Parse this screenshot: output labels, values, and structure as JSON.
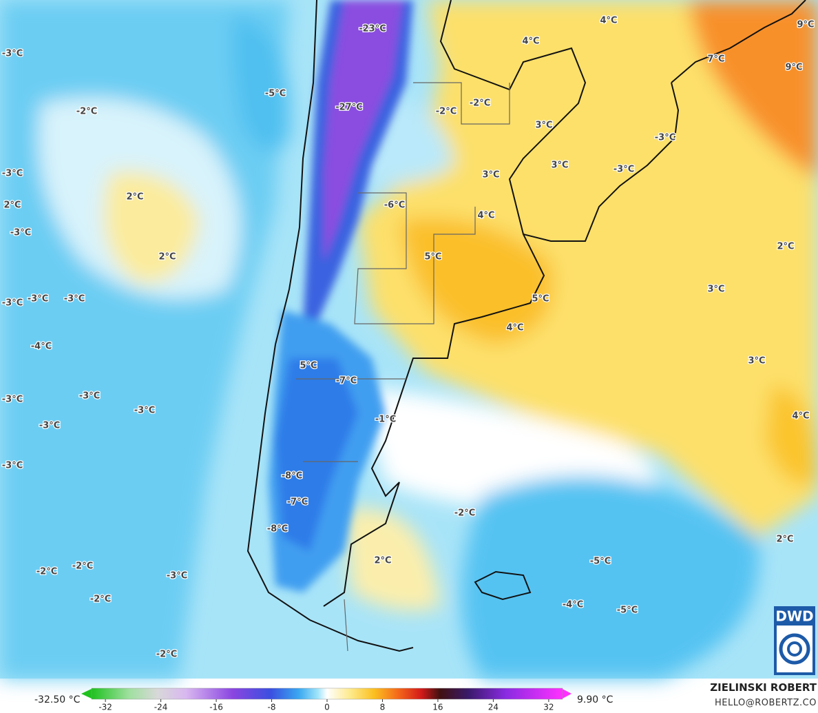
{
  "labels": [
    "-23°C",
    "4°C",
    "4°C",
    "9°C",
    "7°C",
    "9°C",
    "-3°C",
    "-5°C",
    "-2°C",
    "-27°C",
    "-2°C",
    "-2°C",
    "3°C",
    "-3°C",
    "3°C",
    "-3°C",
    "-3°C",
    "3°C",
    "2°C",
    "2°C",
    "-6°C",
    "4°C",
    "-3°C",
    "2°C",
    "5°C",
    "2°C",
    "3°C",
    "-3°C",
    "-3°C",
    "-3°C",
    "5°C",
    "4°C",
    "-4°C",
    "3°C",
    "5°C",
    "-7°C",
    "-3°C",
    "-3°C",
    "-3°C",
    "-3°C",
    "-1°C",
    "4°C",
    "-3°C",
    "-8°C",
    "-7°C",
    "-2°C",
    "-8°C",
    "2°C",
    "2°C",
    "-5°C",
    "-2°C",
    "-2°C",
    "-3°C",
    "-2°C",
    "-4°C",
    "-5°C",
    "-2°C"
  ],
  "colorbar": {
    "min_label": "-32.50 °C",
    "max_label": "9.90 °C",
    "lim": [
      -34,
      34
    ],
    "ticks": [
      -32,
      -24,
      -16,
      -8,
      0,
      8,
      16,
      24,
      32
    ]
  },
  "credit": {
    "author": "ZIELINSKI ROBERT",
    "contact": "HELLO@ROBERTZ.CO"
  },
  "logo": {
    "text": "DWD"
  }
}
